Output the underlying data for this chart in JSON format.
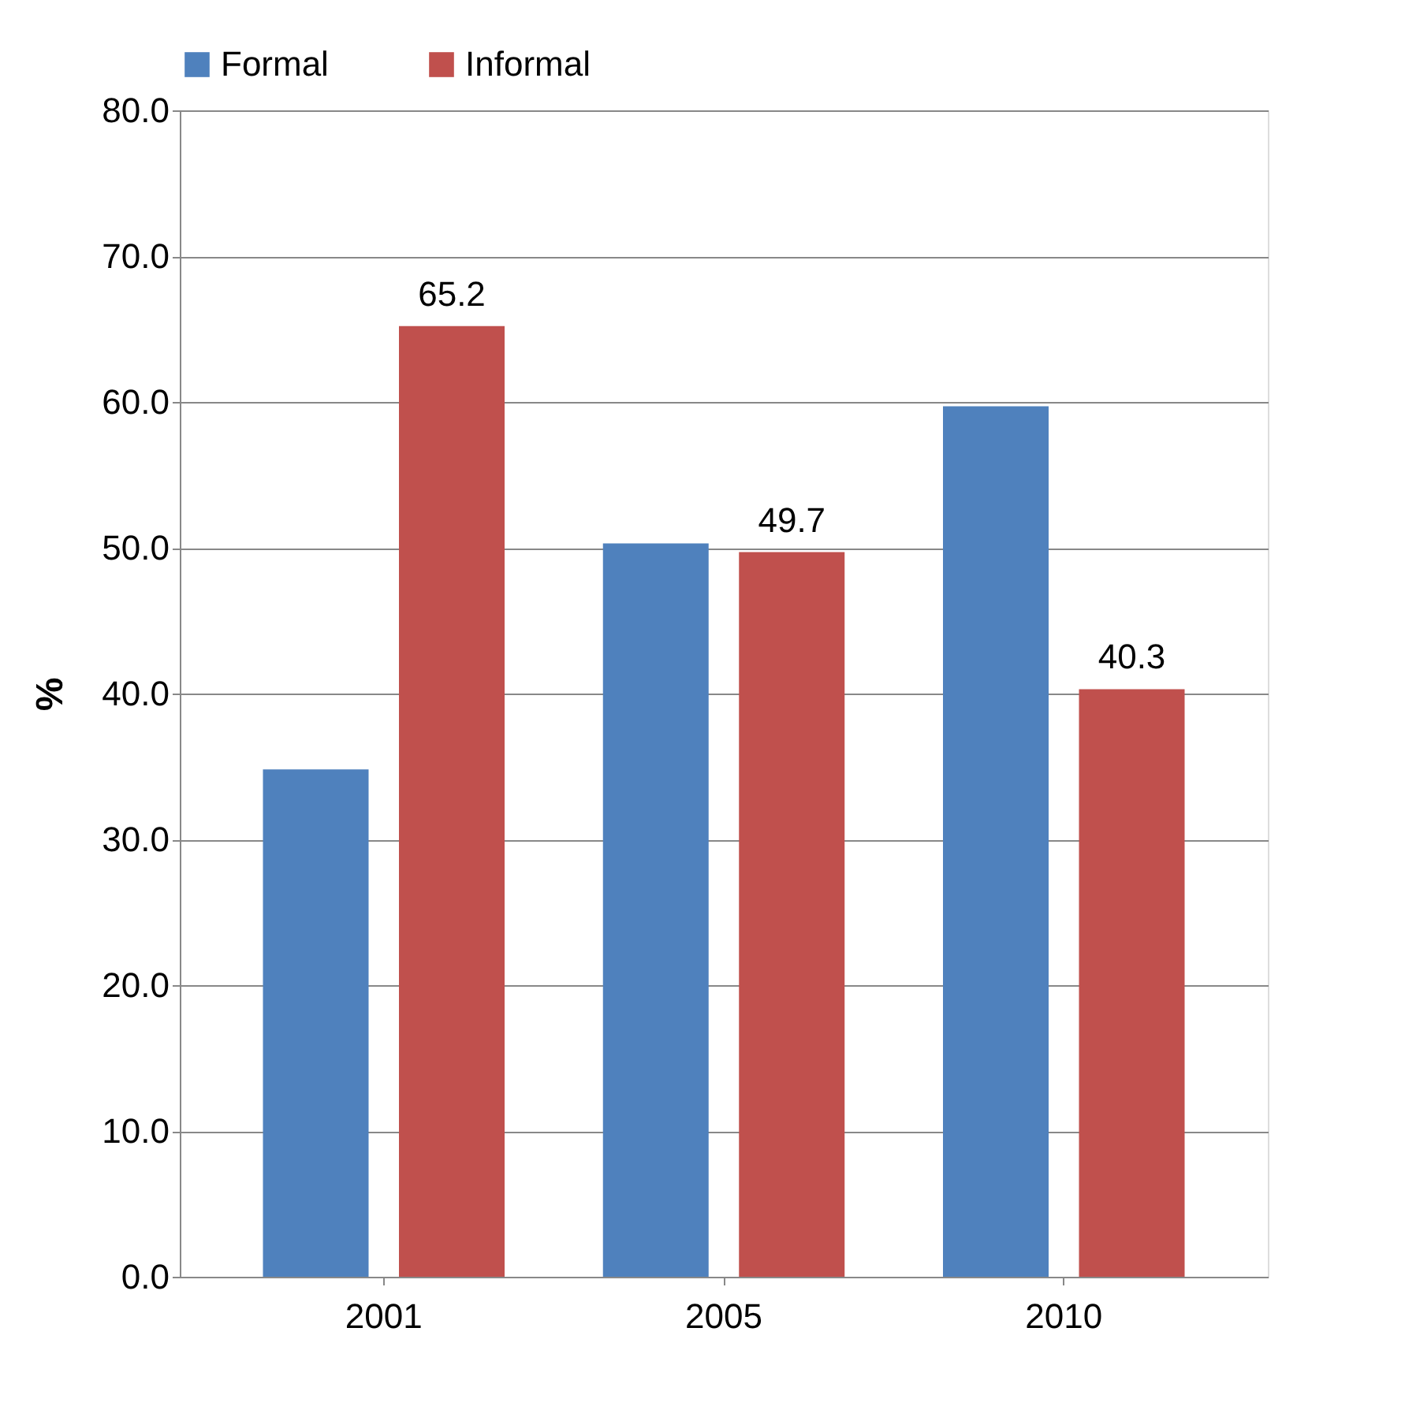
{
  "chart_data": {
    "type": "bar",
    "ylabel": "%",
    "categories": [
      "2001",
      "2005",
      "2010"
    ],
    "series": [
      {
        "name": "Formal",
        "color": "#4f81bd",
        "values": [
          34.8,
          50.3,
          59.7
        ],
        "value_labels": [
          null,
          null,
          null
        ]
      },
      {
        "name": "Informal",
        "color": "#c0504d",
        "values": [
          65.2,
          49.7,
          40.3
        ],
        "value_labels": [
          "65.2",
          "49.7",
          "40.3"
        ]
      }
    ],
    "ylim": [
      0,
      80
    ],
    "yticks": [
      {
        "value": 0,
        "label": "0.0"
      },
      {
        "value": 10,
        "label": "10.0"
      },
      {
        "value": 20,
        "label": "20.0"
      },
      {
        "value": 30,
        "label": "30.0"
      },
      {
        "value": 40,
        "label": "40.0"
      },
      {
        "value": 50,
        "label": "50.0"
      },
      {
        "value": 60,
        "label": "60.0"
      },
      {
        "value": 70,
        "label": "70.0"
      },
      {
        "value": 80,
        "label": "80.0"
      }
    ],
    "grid": "y",
    "legend": "top"
  }
}
